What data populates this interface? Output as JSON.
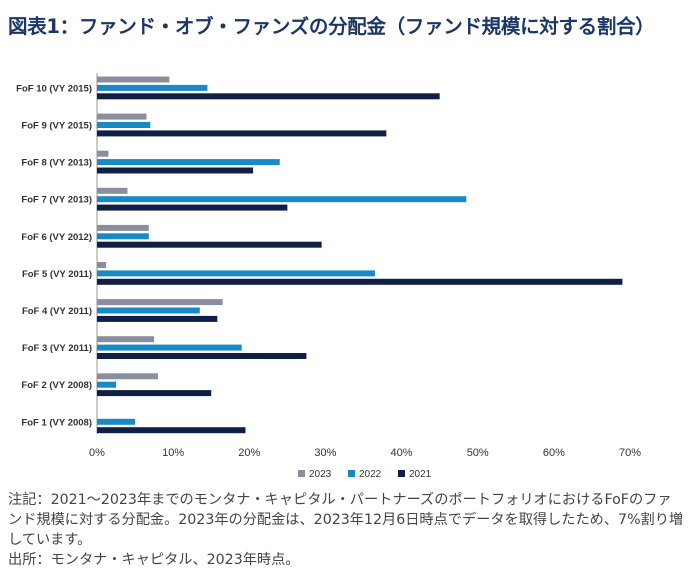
{
  "title": "図表1：ファンド・オブ・ファンズの分配金（ファンド規模に対する割合）",
  "colors": {
    "title": "#1c3668",
    "s2023": "#8a8fa0",
    "s2022": "#1a8ac6",
    "s2021": "#0f1f45"
  },
  "chart_data": {
    "type": "bar",
    "orientation": "horizontal",
    "title": "ファンド・オブ・ファンズの分配金（ファンド規模に対する割合）",
    "xlabel": "",
    "ylabel": "",
    "xlim": [
      0,
      70
    ],
    "xticks": [
      "0%",
      "10%",
      "20%",
      "30%",
      "40%",
      "50%",
      "60%",
      "70%"
    ],
    "categories": [
      "FoF 10 (VY 2015)",
      "FoF 9 (VY 2015)",
      "FoF 8 (VY 2013)",
      "FoF 7 (VY 2013)",
      "FoF 6 (VY 2012)",
      "FoF 5 (VY 2011)",
      "FoF 4 (VY 2011)",
      "FoF 3 (VY 2011)",
      "FoF 2 (VY 2008)",
      "FoF 1 (VY 2008)"
    ],
    "series": [
      {
        "name": "2023",
        "values": [
          9.5,
          6.5,
          1.5,
          4.0,
          6.8,
          1.2,
          16.5,
          7.5,
          8.0,
          0
        ]
      },
      {
        "name": "2022",
        "values": [
          14.5,
          7.0,
          24.0,
          48.5,
          6.8,
          36.5,
          13.5,
          19.0,
          2.5,
          5.0
        ]
      },
      {
        "name": "2021",
        "values": [
          45.0,
          38.0,
          20.5,
          25.0,
          29.5,
          69.0,
          15.8,
          27.5,
          15.0,
          19.5
        ]
      }
    ],
    "legend": [
      "2023",
      "2022",
      "2021"
    ],
    "legend_position": "bottom"
  },
  "notes": [
    "注記：2021～2023年までのモンタナ・キャピタル・パートナーズのポートフォリオにおけるFoFのファンド規模に対する分配金。2023年の分配金は、2023年12月6日時点でデータを取得したため、7%割り増しています。",
    "出所：モンタナ・キャピタル、2023年時点。"
  ]
}
